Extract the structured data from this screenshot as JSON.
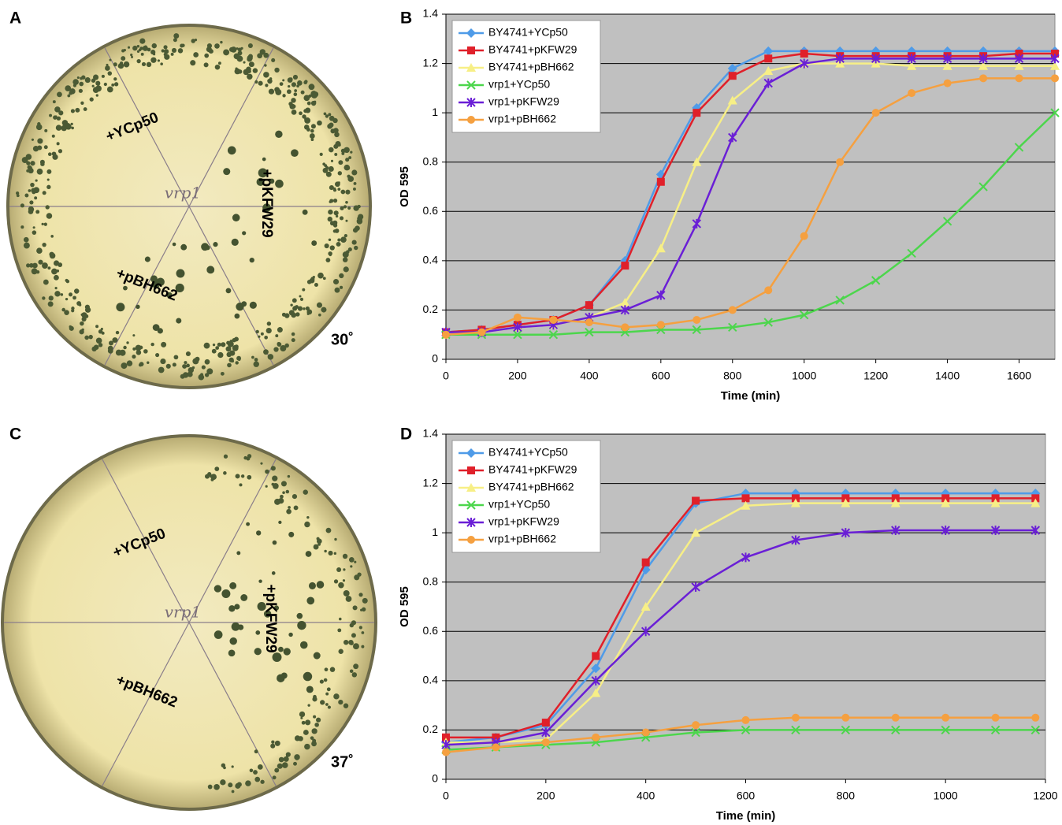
{
  "panels": [
    {
      "label": "A",
      "plate_labels": [
        "+YCp50",
        "+pKFW29",
        "+pBH662"
      ],
      "center_label": "vrp1",
      "temperature": "30˚"
    },
    {
      "label": "C",
      "plate_labels": [
        "+YCp50",
        "+pKFW29",
        "+pBH662"
      ],
      "center_label": "vrp1",
      "temperature": "37˚"
    }
  ],
  "chart_data": [
    {
      "type": "line",
      "panel_label": "B",
      "x_label": "Time (min)",
      "y_label": "OD 595",
      "x": [
        0,
        100,
        200,
        300,
        400,
        500,
        600,
        700,
        800,
        900,
        1000,
        1100,
        1200,
        1300,
        1400,
        1500,
        1600,
        1700
      ],
      "xlim": [
        0,
        1700
      ],
      "xticks": [
        0,
        200,
        400,
        600,
        800,
        1000,
        1200,
        1400,
        1600
      ],
      "ylim": [
        0,
        1.4
      ],
      "yticks": [
        0,
        0.2,
        0.4,
        0.6,
        0.8,
        1,
        1.2,
        1.4
      ],
      "grid": true,
      "legend": "top-left",
      "series": [
        {
          "name": "BY4741+YCp50",
          "color": "#4f9be8",
          "marker": "diamond",
          "values": [
            0.11,
            0.12,
            0.14,
            0.16,
            0.22,
            0.4,
            0.75,
            1.02,
            1.18,
            1.25,
            1.25,
            1.25,
            1.25,
            1.25,
            1.25,
            1.25,
            1.25,
            1.25
          ]
        },
        {
          "name": "BY4741+pKFW29",
          "color": "#e0202a",
          "marker": "square",
          "values": [
            0.11,
            0.12,
            0.14,
            0.16,
            0.22,
            0.38,
            0.72,
            1.0,
            1.15,
            1.22,
            1.24,
            1.23,
            1.23,
            1.23,
            1.23,
            1.23,
            1.24,
            1.24
          ]
        },
        {
          "name": "BY4741+pBH662",
          "color": "#f7ef86",
          "marker": "triangle",
          "values": [
            0.1,
            0.11,
            0.13,
            0.14,
            0.17,
            0.23,
            0.45,
            0.8,
            1.05,
            1.17,
            1.2,
            1.2,
            1.2,
            1.19,
            1.19,
            1.19,
            1.19,
            1.19
          ]
        },
        {
          "name": "vrp1+YCp50",
          "color": "#4cd64c",
          "marker": "x",
          "values": [
            0.1,
            0.1,
            0.1,
            0.1,
            0.11,
            0.11,
            0.12,
            0.12,
            0.13,
            0.15,
            0.18,
            0.24,
            0.32,
            0.43,
            0.56,
            0.7,
            0.86,
            1.0
          ]
        },
        {
          "name": "vrp1+pKFW29",
          "color": "#6a1fd6",
          "marker": "star",
          "values": [
            0.11,
            0.11,
            0.13,
            0.14,
            0.17,
            0.2,
            0.26,
            0.55,
            0.9,
            1.12,
            1.2,
            1.22,
            1.22,
            1.22,
            1.22,
            1.22,
            1.22,
            1.22
          ]
        },
        {
          "name": "vrp1+pBH662",
          "color": "#f5a040",
          "marker": "circle",
          "values": [
            0.1,
            0.11,
            0.17,
            0.16,
            0.15,
            0.13,
            0.14,
            0.16,
            0.2,
            0.28,
            0.5,
            0.8,
            1.0,
            1.08,
            1.12,
            1.14,
            1.14,
            1.14
          ]
        }
      ]
    },
    {
      "type": "line",
      "panel_label": "D",
      "x_label": "Time (min)",
      "y_label": "OD 595",
      "x": [
        0,
        100,
        200,
        300,
        400,
        500,
        600,
        700,
        800,
        900,
        1000,
        1100,
        1180
      ],
      "xlim": [
        0,
        1200
      ],
      "xticks": [
        0,
        200,
        400,
        600,
        800,
        1000,
        1200
      ],
      "ylim": [
        0,
        1.4
      ],
      "yticks": [
        0,
        0.2,
        0.4,
        0.6,
        0.8,
        1,
        1.2,
        1.4
      ],
      "grid": true,
      "legend": "top-left",
      "series": [
        {
          "name": "BY4741+YCp50",
          "color": "#4f9be8",
          "marker": "diamond",
          "values": [
            0.15,
            0.17,
            0.22,
            0.45,
            0.85,
            1.12,
            1.16,
            1.16,
            1.16,
            1.16,
            1.16,
            1.16,
            1.16
          ]
        },
        {
          "name": "BY4741+pKFW29",
          "color": "#e0202a",
          "marker": "square",
          "values": [
            0.17,
            0.17,
            0.23,
            0.5,
            0.88,
            1.13,
            1.14,
            1.14,
            1.14,
            1.14,
            1.14,
            1.14,
            1.14
          ]
        },
        {
          "name": "BY4741+pBH662",
          "color": "#f7ef86",
          "marker": "triangle",
          "values": [
            0.15,
            0.15,
            0.16,
            0.35,
            0.7,
            1.0,
            1.11,
            1.12,
            1.12,
            1.12,
            1.12,
            1.12,
            1.12
          ]
        },
        {
          "name": "vrp1+YCp50",
          "color": "#4cd64c",
          "marker": "x",
          "values": [
            0.12,
            0.13,
            0.14,
            0.15,
            0.17,
            0.19,
            0.2,
            0.2,
            0.2,
            0.2,
            0.2,
            0.2,
            0.2
          ]
        },
        {
          "name": "vrp1+pKFW29",
          "color": "#6a1fd6",
          "marker": "star",
          "values": [
            0.14,
            0.15,
            0.19,
            0.4,
            0.6,
            0.78,
            0.9,
            0.97,
            1.0,
            1.01,
            1.01,
            1.01,
            1.01
          ]
        },
        {
          "name": "vrp1+pBH662",
          "color": "#f5a040",
          "marker": "circle",
          "values": [
            0.11,
            0.13,
            0.15,
            0.17,
            0.19,
            0.22,
            0.24,
            0.25,
            0.25,
            0.25,
            0.25,
            0.25,
            0.25
          ]
        }
      ]
    }
  ]
}
